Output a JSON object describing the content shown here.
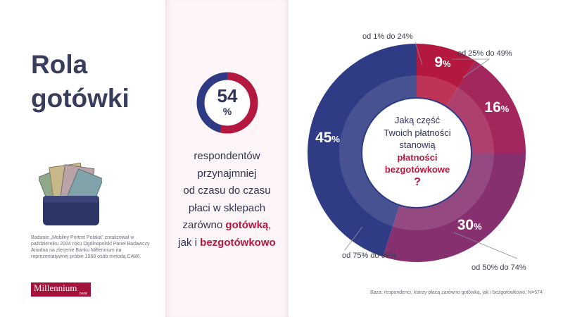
{
  "title": {
    "line1": "Rola",
    "line2": "gotówki"
  },
  "survey_note": "Badanie „Mobilny Portret Polaka” zrealizował w październiku 2024 roku Ogólnopolski Panel Badawczy Ariadna na zlecenie Banku Millennium na reprezentatywnej próbie 1068 osób metodą CAWI.",
  "logo": {
    "name": "Millennium",
    "sub": "bank"
  },
  "stat": {
    "value": "54",
    "unit": "%",
    "fraction": 0.54,
    "lines": [
      "respondentów",
      "przynajmniej",
      "od czasu do czasu",
      "płaci w sklepach"
    ],
    "line5_prefix": "zarówno ",
    "line5_accent": "gotówką",
    "line5_suffix": ",",
    "line6_prefix": "jak i ",
    "line6_accent": "bezgotówkowo"
  },
  "center_text": {
    "lines": [
      "Jaką część",
      "Twoich płatności",
      "stanowią"
    ],
    "accent1": "płatności",
    "accent2": "bezgotówkowe",
    "mark": "?"
  },
  "base_note": "Baza: respondenci, którzy płacą zarówno gotówką, jak i bezgotówkowo; N=574",
  "colors": {
    "navy": "#2e3a84",
    "crimson": "#b4183f",
    "magenta": "#a0285c",
    "purple": "#8a3570",
    "violet": "#6a3a7e"
  },
  "chart_data": {
    "type": "pie",
    "donut": true,
    "categories": [
      "od 1% do 24%",
      "od 25% do 49%",
      "od 50% do 74%",
      "od 75% do 99%"
    ],
    "values": [
      9,
      16,
      30,
      45
    ],
    "value_labels": [
      "9",
      "16",
      "30",
      "45"
    ],
    "unit": "%",
    "colors": [
      "#b4183f",
      "#a3265d",
      "#86306f",
      "#2f3b85"
    ]
  }
}
